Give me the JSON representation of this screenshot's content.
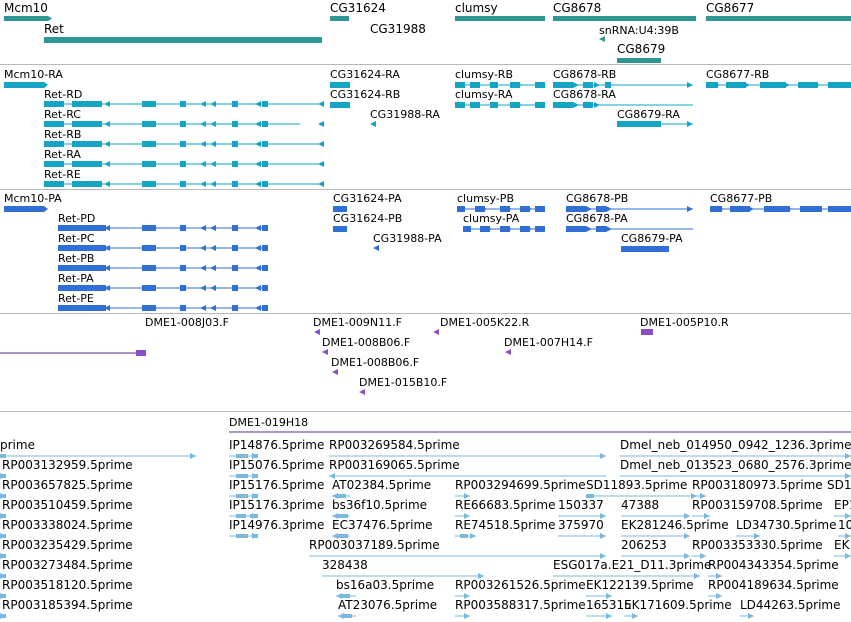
{
  "colors": {
    "gene_track": "#2f9595",
    "modencode_transcripts": "#13a5c3",
    "flybase_transcripts": "#2f6fd6",
    "bac_ends": "#8a4fc4",
    "bac_line": "#5a2c8a",
    "cdna": "#7ab8df",
    "separator": "#b8b8b8"
  },
  "tracks": {
    "genes": {
      "labels": [
        "Mcm10",
        "Ret",
        "CG31624",
        "CG31988",
        "clumsy",
        "CG8678",
        "snRNA:U4:39B",
        "CG8679",
        "CG8677"
      ]
    },
    "modencode_transcripts": {
      "labels": [
        "Mcm10-RA",
        "Ret-RD",
        "Ret-RC",
        "Ret-RB",
        "Ret-RA",
        "Ret-RE",
        "CG31624-RA",
        "CG31624-RB",
        "CG31988-RA",
        "clumsy-RB",
        "clumsy-RA",
        "CG8678-RB",
        "CG8678-RA",
        "CG8679-RA",
        "CG8677-RB"
      ]
    },
    "flybase_transcripts": {
      "labels": [
        "Mcm10-PA",
        "Ret-PD",
        "Ret-PC",
        "Ret-PB",
        "Ret-PA",
        "Ret-PE",
        "CG31624-PA",
        "CG31624-PB",
        "CG31988-PA",
        "clumsy-PB",
        "clumsy-PA",
        "CG8678-PB",
        "CG8678-PA",
        "CG8679-PA",
        "CG8677-PB"
      ]
    },
    "bac_ends": {
      "labels": [
        "DME1-008J03.F",
        "DME1-009N11.F",
        "DME1-005K22.R",
        "DME1-005P10.R",
        "DME1-008B06.F",
        "DME1-007H14.F",
        "DME1-008B06.F",
        "DME1-015B10.F"
      ]
    },
    "bac_clone": {
      "label": "DME1-019H18"
    },
    "cdna": {
      "labels": [
        "prime",
        "IP14876.5prime",
        "RP003269584.5prime",
        "Dmel_neb_014950_0942_1236.3prime",
        "RP003132959.5prime",
        "IP15076.5prime",
        "RP003169065.5prime",
        "Dmel_neb_013523_0680_2576.3prime",
        "RP003657825.5prime",
        "IP15176.5prime",
        "AT02384.5prime",
        "RP003294699.5prime",
        "SD11893.5prime",
        "RP003180973.5prime",
        "SD1",
        "RP003510459.5prime",
        "IP15176.3prime",
        "bs36f10.5prime",
        "RE66683.5prime",
        "150337",
        "47388",
        "RP003159708.5prime",
        "EP1",
        "RP003338024.5prime",
        "IP14976.3prime",
        "EC37476.5prime",
        "RE74518.5prime",
        "375970",
        "EK281246.5prime",
        "LD34730.5prime",
        "10",
        "RP003235429.5prime",
        "RP003037189.5prime",
        "206253",
        "RP003353330.5prime",
        "EK",
        "RP003273484.5prime",
        "328438",
        "ESG017a.E21_D11.3prime",
        "RP004343354.5prime",
        "RP003518120.5prime",
        "bs16a03.5prime",
        "RP003261526.5prime",
        "EK122139.5prime",
        "RP004189634.5prime",
        "RP003185394.5prime",
        "AT23076.5prime",
        "RP003588317.5prime",
        "165315",
        "EK171609.5prime",
        "LD44263.5prime"
      ]
    }
  }
}
